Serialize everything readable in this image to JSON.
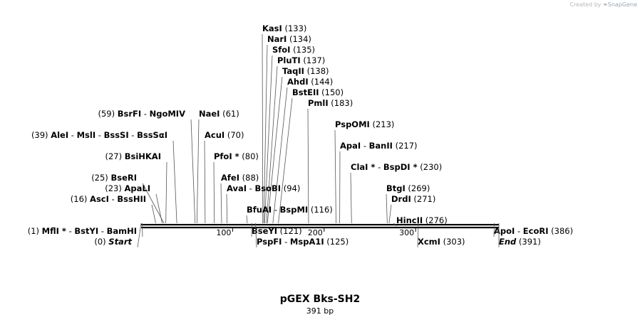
{
  "credit": {
    "prefix": "Created by",
    "brand": "SnapGene"
  },
  "map": {
    "name": "pGEX Bks-SH2",
    "size_label": "391 bp",
    "length": 391,
    "ticks": [
      {
        "pos": 100,
        "label": "100"
      },
      {
        "pos": 200,
        "label": "200"
      },
      {
        "pos": 300,
        "label": "300"
      }
    ],
    "labels": [
      {
        "row": 0,
        "names": [
          "KasI"
        ],
        "num": "(133)",
        "site": 133,
        "side": "right"
      },
      {
        "row": 1,
        "names": [
          "NarI"
        ],
        "num": "(134)",
        "site": 134,
        "side": "right"
      },
      {
        "row": 2,
        "names": [
          "SfoI"
        ],
        "num": "(135)",
        "site": 135,
        "side": "right"
      },
      {
        "row": 3,
        "names": [
          "PluTI"
        ],
        "num": "(137)",
        "site": 137,
        "side": "right"
      },
      {
        "row": 4,
        "names": [
          "TaqII"
        ],
        "num": "(138)",
        "site": 138,
        "side": "right"
      },
      {
        "row": 5,
        "names": [
          "AhdI"
        ],
        "num": "(144)",
        "site": 144,
        "side": "right"
      },
      {
        "row": 6,
        "names": [
          "BstEII"
        ],
        "num": "(150)",
        "site": 150,
        "side": "right"
      },
      {
        "row": 7,
        "names": [
          "PmlI"
        ],
        "num": "(183)",
        "site": 183,
        "side": "right"
      },
      {
        "row": 8,
        "names": [
          "BsrFI",
          "NgoMIV"
        ],
        "num": "(59)",
        "site": 59,
        "side": "left"
      },
      {
        "row": 8,
        "names": [
          "NaeI"
        ],
        "num": "(61)",
        "site": 61,
        "side": "right"
      },
      {
        "row": 9,
        "names": [
          "PspOMI"
        ],
        "num": "(213)",
        "site": 213,
        "side": "right"
      },
      {
        "row": 10,
        "names": [
          "AleI",
          "MslI",
          "BssSI",
          "BssSαI"
        ],
        "num": "(39)",
        "site": 39,
        "side": "left"
      },
      {
        "row": 10,
        "names": [
          "AcuI"
        ],
        "num": "(70)",
        "site": 70,
        "side": "right"
      },
      {
        "row": 11,
        "names": [
          "ApaI",
          "BanII"
        ],
        "num": "(217)",
        "site": 217,
        "side": "right"
      },
      {
        "row": 12,
        "names": [
          "BsiHKAI"
        ],
        "num": "(27)",
        "site": 27,
        "side": "left"
      },
      {
        "row": 12,
        "names": [
          "PfoI *"
        ],
        "num": "(80)",
        "site": 80,
        "side": "right"
      },
      {
        "row": 13,
        "names": [
          "ClaI *",
          "BspDI *"
        ],
        "num": "(230)",
        "site": 230,
        "side": "right"
      },
      {
        "row": 14,
        "names": [
          "BseRI"
        ],
        "num": "(25)",
        "site": 25,
        "side": "left"
      },
      {
        "row": 14,
        "names": [
          "AfeI"
        ],
        "num": "(88)",
        "site": 88,
        "side": "right"
      },
      {
        "row": 15,
        "names": [
          "ApaLI"
        ],
        "num": "(23)",
        "site": 23,
        "side": "left"
      },
      {
        "row": 15,
        "names": [
          "AvaI",
          "BsoBI"
        ],
        "num": "(94)",
        "site": 94,
        "side": "right"
      },
      {
        "row": 15,
        "names": [
          "BtgI"
        ],
        "num": "(269)",
        "site": 269,
        "side": "right"
      },
      {
        "row": 16,
        "names": [
          "AscI",
          "BssHII"
        ],
        "num": "(16)",
        "site": 16,
        "side": "left"
      },
      {
        "row": 16,
        "names": [
          "DrdI"
        ],
        "num": "(271)",
        "site": 271,
        "side": "right"
      },
      {
        "row": 17,
        "names": [
          "BfuAI",
          "BspMI"
        ],
        "num": "(116)",
        "site": 116,
        "side": "right"
      },
      {
        "row": 18,
        "names": [
          "HincII"
        ],
        "num": "(276)",
        "site": 276,
        "side": "right"
      },
      {
        "row": 19,
        "names": [
          "MflI *",
          "BstYI",
          "BamHI"
        ],
        "num": "(1)",
        "site": 1,
        "side": "left"
      },
      {
        "row": 19,
        "names": [
          "BseYI"
        ],
        "num": "(121)",
        "site": 121,
        "side": "right"
      },
      {
        "row": 19,
        "names": [
          "ApoI",
          "EcoRI"
        ],
        "num": "(386)",
        "site": 386,
        "side": "right"
      },
      {
        "row": 20,
        "names": [
          "Start"
        ],
        "num": "(0)",
        "site": 0,
        "side": "left",
        "italic": true
      },
      {
        "row": 20,
        "names": [
          "PspFI",
          "MspA1I"
        ],
        "num": "(125)",
        "site": 125,
        "side": "right"
      },
      {
        "row": 20,
        "names": [
          "XcmI"
        ],
        "num": "(303)",
        "site": 303,
        "side": "right"
      },
      {
        "row": 20,
        "names": [
          "End"
        ],
        "num": "(391)",
        "site": 391,
        "side": "right",
        "italic": true
      }
    ]
  }
}
